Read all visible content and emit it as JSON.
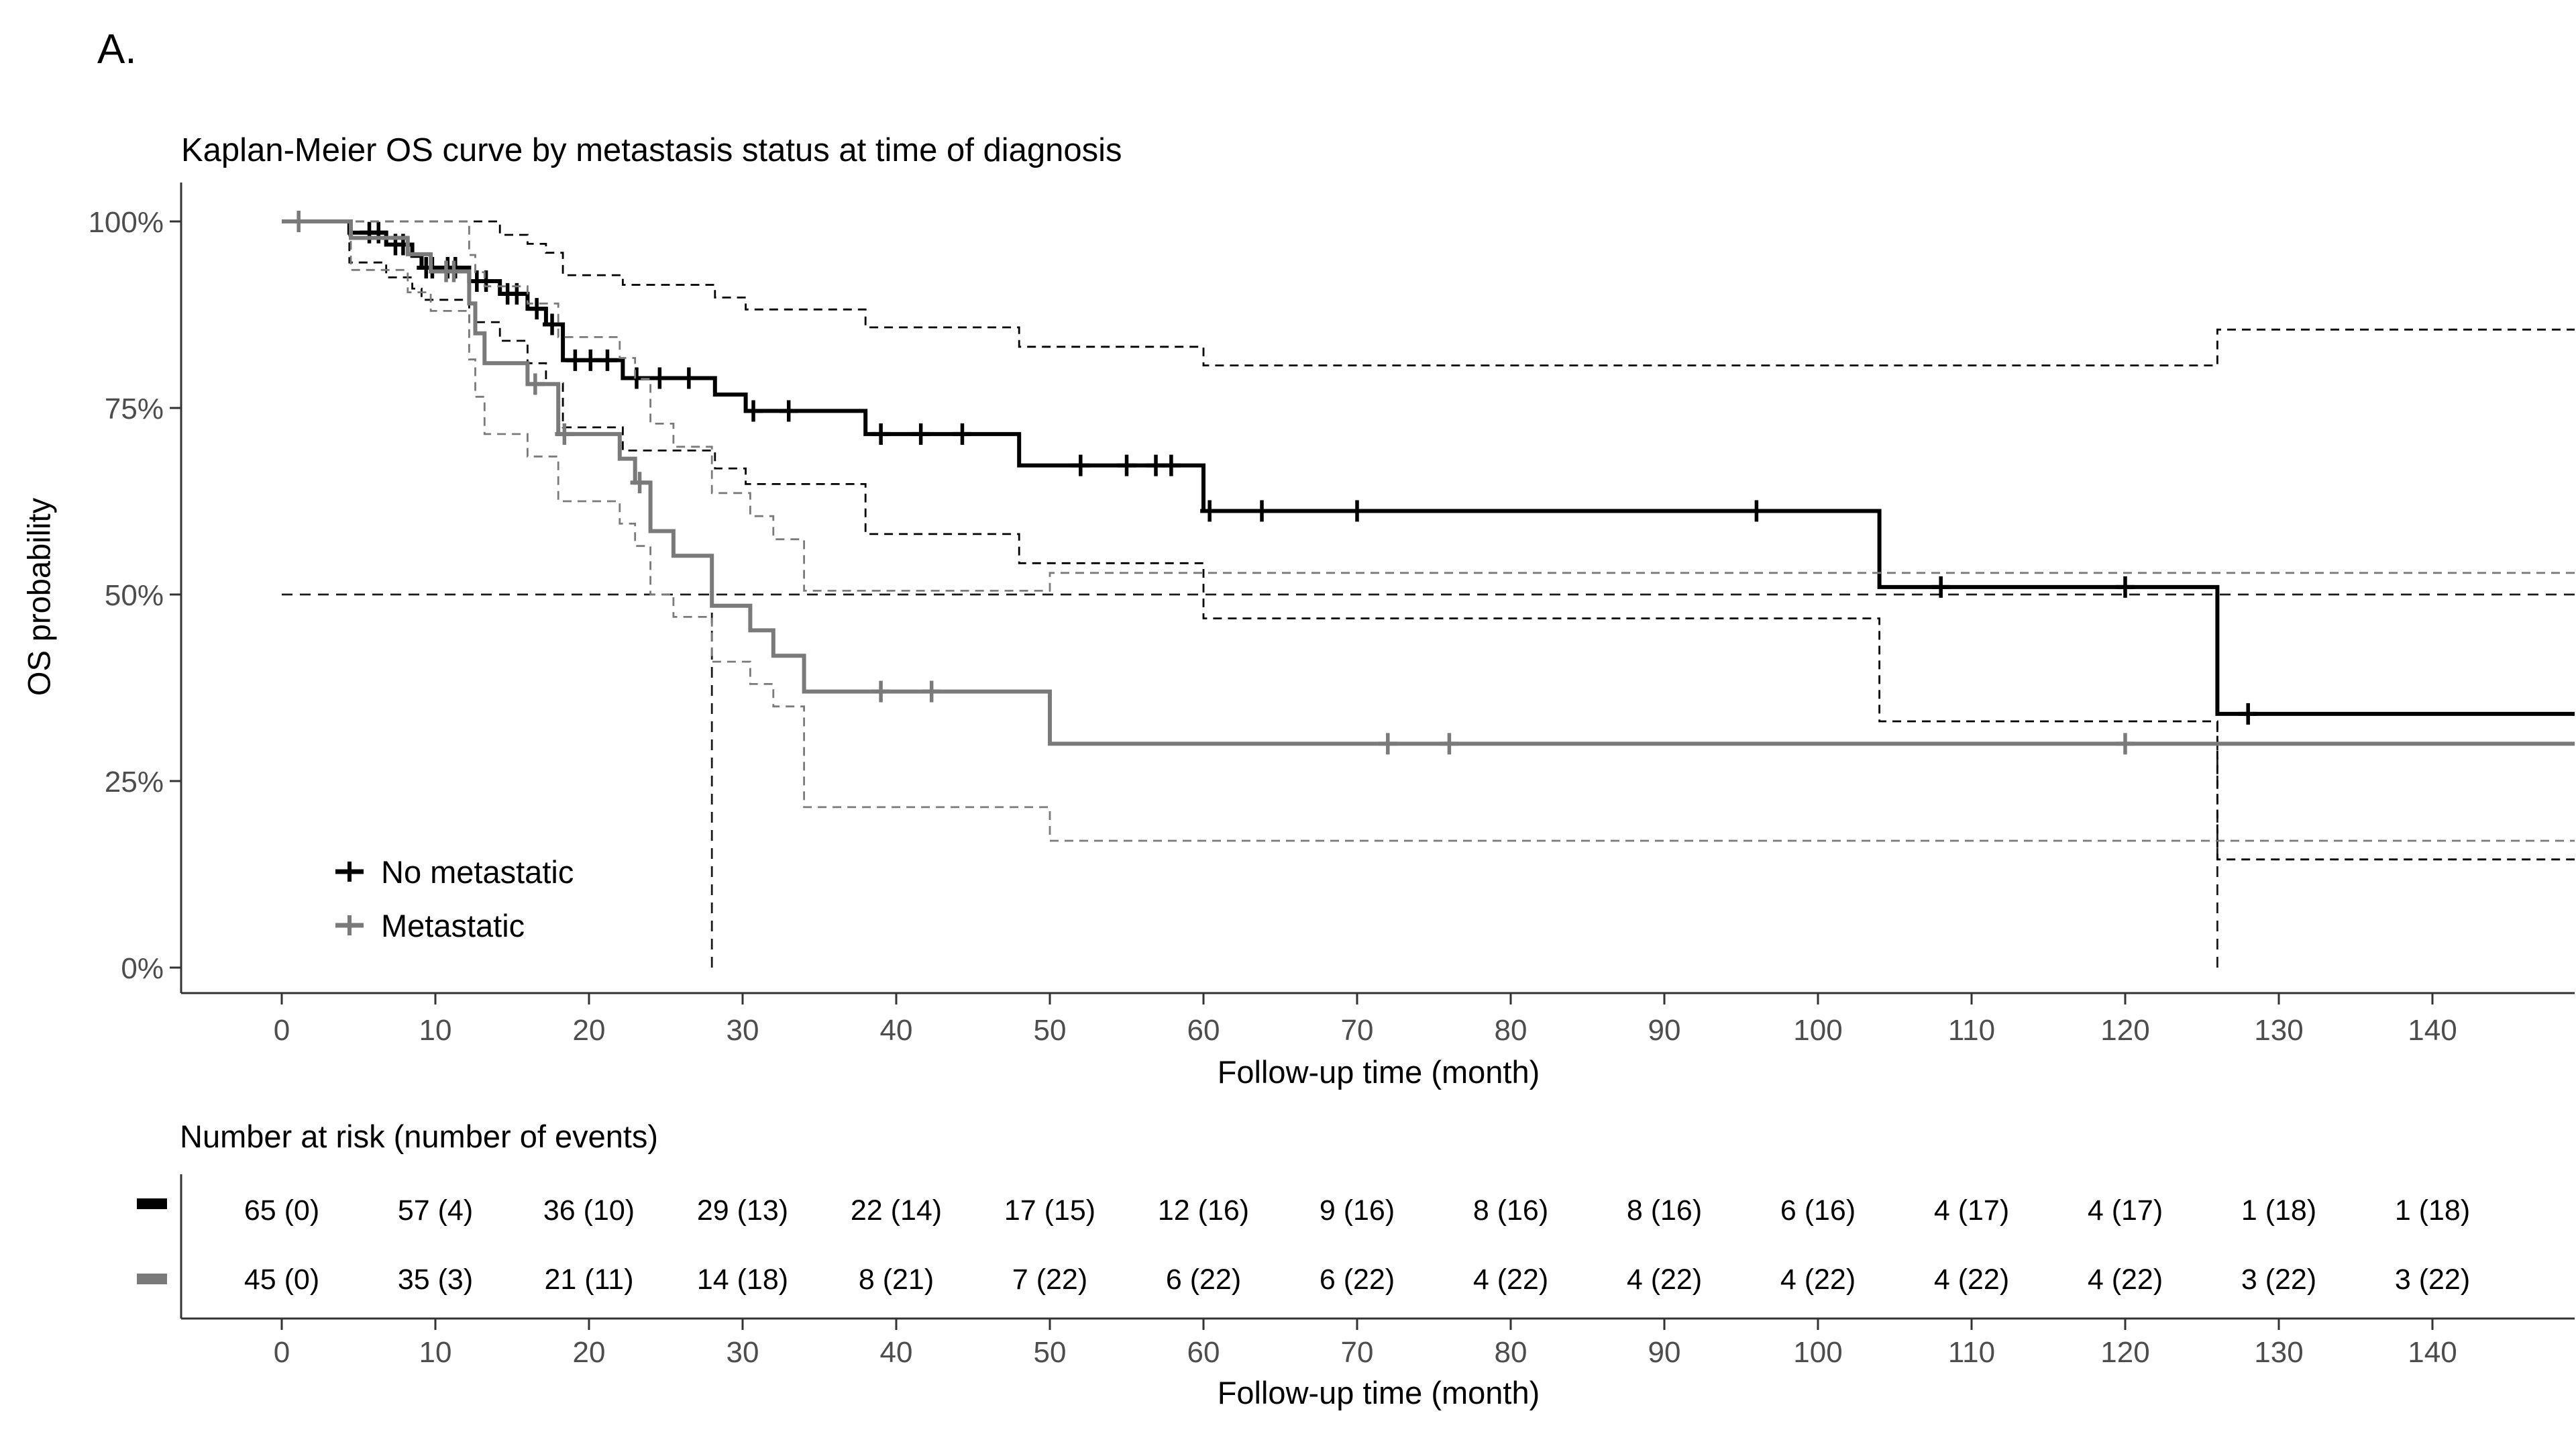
{
  "panel_label": "A.",
  "colors": {
    "no_metastatic": "#000000",
    "metastatic": "#7a7a7a",
    "axis_line": "#333333",
    "tick_text": "#4d4d4d",
    "text": "#000000",
    "median_line": "#1a1a1a"
  },
  "legend": {
    "items": [
      {
        "label": "No metastatic",
        "color": "#000000"
      },
      {
        "label": "Metastatic",
        "color": "#7a7a7a"
      }
    ]
  },
  "chart_data": {
    "type": "line",
    "subtype": "kaplan-meier-step",
    "title": "Kaplan-Meier OS curve by metastasis status at time of diagnosis",
    "xlabel": "Follow-up time (month)",
    "ylabel": "OS probability",
    "xlim": [
      0,
      149.5
    ],
    "ylim": [
      0,
      100
    ],
    "x_ticks": [
      0,
      10,
      20,
      30,
      40,
      50,
      60,
      70,
      80,
      90,
      100,
      110,
      120,
      130,
      140
    ],
    "y_ticks": [
      {
        "value": 0,
        "label": "0%"
      },
      {
        "value": 25,
        "label": "25%"
      },
      {
        "value": 50,
        "label": "50%"
      },
      {
        "value": 75,
        "label": "75%"
      },
      {
        "value": 100,
        "label": "100%"
      }
    ],
    "grid": false,
    "legend_position": "inside-lower-left",
    "median_lines": {
      "h_value": 50,
      "v_times": [
        28,
        126
      ]
    },
    "series": [
      {
        "name": "No metastatic",
        "color": "#000000",
        "steps": [
          [
            0,
            100
          ],
          [
            4.4,
            98.5
          ],
          [
            6.8,
            96.9
          ],
          [
            8.5,
            95.4
          ],
          [
            9.1,
            93.8
          ],
          [
            12.2,
            92.0
          ],
          [
            14.2,
            90.3
          ],
          [
            16,
            88.3
          ],
          [
            17.2,
            86.2
          ],
          [
            18.3,
            81.4
          ],
          [
            22.2,
            79.0
          ],
          [
            28.2,
            76.8
          ],
          [
            30.2,
            74.6
          ],
          [
            38,
            71.5
          ],
          [
            48,
            67.3
          ],
          [
            60,
            61.2
          ],
          [
            104,
            51.0
          ],
          [
            126,
            34.0
          ]
        ],
        "censors": [
          [
            5.7,
            98.5
          ],
          [
            6.3,
            98.5
          ],
          [
            7.4,
            96.9
          ],
          [
            7.9,
            96.9
          ],
          [
            9.4,
            93.8
          ],
          [
            9.8,
            93.8
          ],
          [
            10.8,
            93.8
          ],
          [
            11.3,
            93.8
          ],
          [
            12.7,
            92.0
          ],
          [
            13.3,
            92.0
          ],
          [
            14.7,
            90.3
          ],
          [
            15.3,
            90.3
          ],
          [
            16.6,
            88.3
          ],
          [
            17.6,
            86.2
          ],
          [
            19.1,
            81.4
          ],
          [
            20.1,
            81.4
          ],
          [
            21.2,
            81.4
          ],
          [
            23.1,
            79.0
          ],
          [
            24.6,
            79.0
          ],
          [
            26.5,
            79.0
          ],
          [
            30.7,
            74.6
          ],
          [
            33,
            74.6
          ],
          [
            39,
            71.5
          ],
          [
            41.6,
            71.5
          ],
          [
            44.3,
            71.5
          ],
          [
            52,
            67.3
          ],
          [
            55,
            67.3
          ],
          [
            56.9,
            67.3
          ],
          [
            57.9,
            67.3
          ],
          [
            60.4,
            61.2
          ],
          [
            63.8,
            61.2
          ],
          [
            70,
            61.2
          ],
          [
            96,
            61.2
          ],
          [
            108,
            51.0
          ],
          [
            120,
            51.0
          ],
          [
            128,
            34.0
          ]
        ],
        "ci_upper": [
          [
            0,
            100
          ],
          [
            14.2,
            98.2
          ],
          [
            16,
            97.0
          ],
          [
            17.2,
            95.8
          ],
          [
            18.3,
            92.8
          ],
          [
            22.2,
            91.5
          ],
          [
            28.2,
            89.8
          ],
          [
            30.2,
            88.2
          ],
          [
            38,
            85.8
          ],
          [
            48,
            83.2
          ],
          [
            60,
            80.7
          ],
          [
            126,
            85.5
          ]
        ],
        "ci_lower": [
          [
            0,
            100
          ],
          [
            4.4,
            94.5
          ],
          [
            6.8,
            92.5
          ],
          [
            8.5,
            91.0
          ],
          [
            9.1,
            89.5
          ],
          [
            12.2,
            86.5
          ],
          [
            14.2,
            84.0
          ],
          [
            16,
            81.0
          ],
          [
            17.2,
            78.3
          ],
          [
            18.3,
            72.4
          ],
          [
            22.2,
            69.3
          ],
          [
            28.2,
            66.9
          ],
          [
            30.2,
            64.8
          ],
          [
            38,
            58.1
          ],
          [
            48,
            54.2
          ],
          [
            60,
            46.8
          ],
          [
            104,
            33.0
          ],
          [
            126,
            14.5
          ]
        ]
      },
      {
        "name": "Metastatic",
        "color": "#7a7a7a",
        "steps": [
          [
            0,
            100
          ],
          [
            4.5,
            97.8
          ],
          [
            8.2,
            95.6
          ],
          [
            9.7,
            93.3
          ],
          [
            12.2,
            89.0
          ],
          [
            12.6,
            85.0
          ],
          [
            13.2,
            81.0
          ],
          [
            16,
            78.2
          ],
          [
            18,
            71.5
          ],
          [
            22,
            68.2
          ],
          [
            23,
            65.0
          ],
          [
            24,
            58.5
          ],
          [
            25.5,
            55.2
          ],
          [
            28,
            48.5
          ],
          [
            30.5,
            45.2
          ],
          [
            32,
            41.8
          ],
          [
            34,
            37.0
          ],
          [
            50,
            30.0
          ]
        ],
        "censors": [
          [
            1.1,
            100
          ],
          [
            10.7,
            93.3
          ],
          [
            11.2,
            93.3
          ],
          [
            16.5,
            78.2
          ],
          [
            18.4,
            71.5
          ],
          [
            23.3,
            65.0
          ],
          [
            39,
            37.0
          ],
          [
            42.3,
            37.0
          ],
          [
            72,
            30.0
          ],
          [
            76,
            30.0
          ],
          [
            120,
            30.0
          ]
        ],
        "ci_upper": [
          [
            0,
            100
          ],
          [
            12.2,
            95.5
          ],
          [
            12.6,
            93.2
          ],
          [
            13.2,
            91.3
          ],
          [
            16,
            89.0
          ],
          [
            18,
            84.5
          ],
          [
            22,
            81.7
          ],
          [
            23,
            78.9
          ],
          [
            24,
            72.9
          ],
          [
            25.5,
            69.8
          ],
          [
            28,
            63.6
          ],
          [
            30.5,
            60.5
          ],
          [
            32,
            57.4
          ],
          [
            34,
            50.5
          ],
          [
            50,
            52.9
          ]
        ],
        "ci_lower": [
          [
            0,
            100
          ],
          [
            4.5,
            93.5
          ],
          [
            8.2,
            90.5
          ],
          [
            9.7,
            88.0
          ],
          [
            12.2,
            81.5
          ],
          [
            12.6,
            76.5
          ],
          [
            13.2,
            71.5
          ],
          [
            16,
            68.5
          ],
          [
            18,
            62.5
          ],
          [
            22,
            59.5
          ],
          [
            23,
            56.5
          ],
          [
            24,
            50.0
          ],
          [
            25.5,
            47.0
          ],
          [
            28,
            41.0
          ],
          [
            30.5,
            38.0
          ],
          [
            32,
            35.0
          ],
          [
            34,
            21.5
          ],
          [
            50,
            17.0
          ]
        ]
      }
    ]
  },
  "risk_table": {
    "title": "Number at risk (number of events)",
    "xlabel": "Follow-up time (month)",
    "x_ticks": [
      0,
      10,
      20,
      30,
      40,
      50,
      60,
      70,
      80,
      90,
      100,
      110,
      120,
      130,
      140
    ],
    "rows": [
      {
        "name": "No metastatic",
        "marker_color": "#000000",
        "values": [
          "65 (0)",
          "57 (4)",
          "36 (10)",
          "29 (13)",
          "22 (14)",
          "17 (15)",
          "12 (16)",
          "9 (16)",
          "8 (16)",
          "8 (16)",
          "6 (16)",
          "4 (17)",
          "4 (17)",
          "1 (18)",
          "1 (18)"
        ]
      },
      {
        "name": "Metastatic",
        "marker_color": "#7a7a7a",
        "values": [
          "45 (0)",
          "35 (3)",
          "21 (11)",
          "14 (18)",
          "8 (21)",
          "7 (22)",
          "6 (22)",
          "6 (22)",
          "4 (22)",
          "4 (22)",
          "4 (22)",
          "4 (22)",
          "4 (22)",
          "3 (22)",
          "3 (22)"
        ]
      }
    ]
  }
}
